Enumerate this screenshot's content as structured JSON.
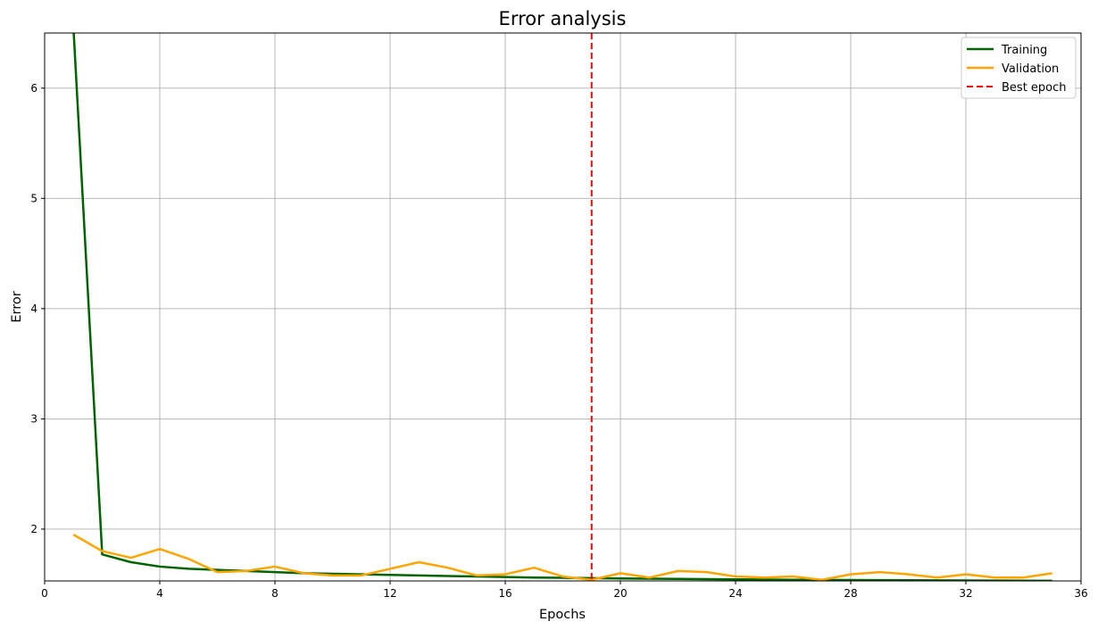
{
  "chart_data": {
    "type": "line",
    "title": "Error analysis",
    "xlabel": "Epochs",
    "ylabel": "Error",
    "xlim": [
      0,
      36
    ],
    "ylim": [
      1.53,
      6.5
    ],
    "xticks": [
      0,
      4,
      8,
      12,
      16,
      20,
      24,
      28,
      32,
      36
    ],
    "yticks": [
      2,
      3,
      4,
      5,
      6
    ],
    "grid": true,
    "legend_position": "top-right",
    "series": [
      {
        "name": "Training",
        "color": "#006400",
        "style": "solid",
        "x": [
          1,
          2,
          3,
          4,
          5,
          6,
          7,
          8,
          9,
          10,
          11,
          12,
          13,
          14,
          15,
          16,
          17,
          18,
          19,
          20,
          21,
          22,
          23,
          24,
          25,
          26,
          27,
          28,
          29,
          30,
          31,
          32,
          33,
          34,
          35
        ],
        "y": [
          6.55,
          1.77,
          1.7,
          1.66,
          1.64,
          1.63,
          1.62,
          1.61,
          1.6,
          1.595,
          1.59,
          1.585,
          1.58,
          1.575,
          1.57,
          1.565,
          1.56,
          1.558,
          1.555,
          1.552,
          1.55,
          1.548,
          1.546,
          1.544,
          1.542,
          1.54,
          1.539,
          1.538,
          1.537,
          1.536,
          1.535,
          1.534,
          1.533,
          1.532,
          1.531
        ]
      },
      {
        "name": "Validation",
        "color": "#FFA500",
        "style": "solid",
        "x": [
          1,
          2,
          3,
          4,
          5,
          6,
          7,
          8,
          9,
          10,
          11,
          12,
          13,
          14,
          15,
          16,
          17,
          18,
          19,
          20,
          21,
          22,
          23,
          24,
          25,
          26,
          27,
          28,
          29,
          30,
          31,
          32,
          33,
          34,
          35
        ],
        "y": [
          1.95,
          1.8,
          1.74,
          1.82,
          1.73,
          1.61,
          1.62,
          1.66,
          1.6,
          1.58,
          1.58,
          1.64,
          1.7,
          1.65,
          1.58,
          1.59,
          1.65,
          1.57,
          1.54,
          1.6,
          1.56,
          1.62,
          1.61,
          1.57,
          1.56,
          1.57,
          1.54,
          1.59,
          1.61,
          1.59,
          1.56,
          1.59,
          1.56,
          1.56,
          1.6
        ]
      },
      {
        "name": "Best epoch",
        "color": "#FF0000",
        "style": "dashed",
        "vline_x": 19
      }
    ]
  }
}
